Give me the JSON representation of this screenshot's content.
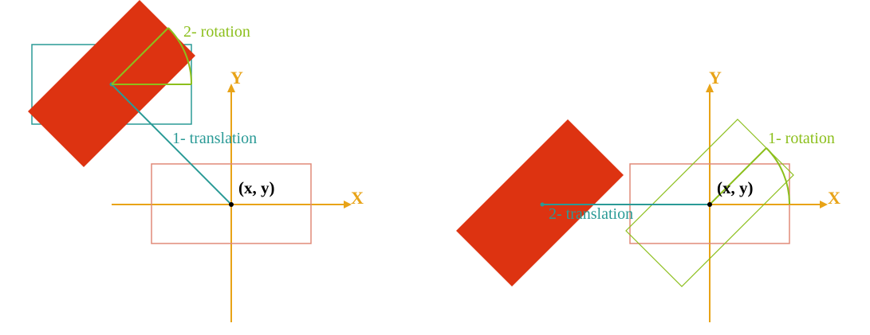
{
  "colors": {
    "background": "#ffffff",
    "axis": "#e8a317",
    "teal": "#2a9a96",
    "green": "#8cbf1c",
    "salmon": "#e08a78",
    "red": "#dd3311",
    "black": "#000000"
  },
  "left": {
    "labels": {
      "y_axis": "Y",
      "x_axis": "X",
      "point": "(x, y)",
      "step1": "1- translation",
      "step2": "2- rotation"
    }
  },
  "right": {
    "labels": {
      "y_axis": "Y",
      "x_axis": "X",
      "point": "(x, y)",
      "step1": "1- rotation",
      "step2": "2- translation"
    }
  }
}
